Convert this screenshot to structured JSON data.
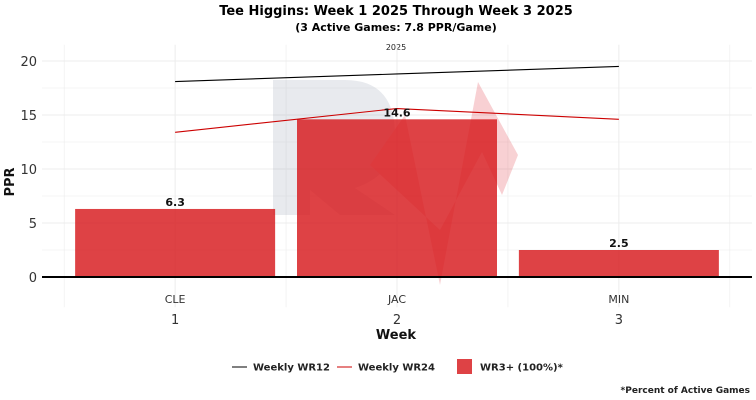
{
  "colors": {
    "bar": "#d7191c",
    "wr12_line": "#000000",
    "wr24_line": "#cc0000",
    "grid": "#ececec",
    "baseline": "#000000"
  },
  "chart_data": {
    "type": "bar",
    "title": "Tee Higgins: Week 1 2025 Through Week 3 2025",
    "subtitle": "(3 Active Games: 7.8 PPR/Game)",
    "facet_label": "2025",
    "xlabel": "Week",
    "ylabel": "PPR",
    "ylim": [
      -2.8,
      21.5
    ],
    "yticks": [
      "0",
      "5",
      "10",
      "15",
      "20"
    ],
    "grid": true,
    "x": [
      "1",
      "2",
      "3"
    ],
    "categories": [
      "CLE",
      "JAC",
      "MIN"
    ],
    "series": [
      {
        "name": "WR3+ (100%)*",
        "type": "bar",
        "values": [
          6.3,
          14.6,
          2.5
        ],
        "labels": [
          "6.3",
          "14.6",
          "2.5"
        ]
      },
      {
        "name": "Weekly WR12",
        "type": "line",
        "values": [
          18.1,
          18.8,
          19.5
        ]
      },
      {
        "name": "Weekly WR24",
        "type": "line",
        "values": [
          13.4,
          15.6,
          14.6
        ]
      }
    ],
    "legend_position": "bottom",
    "footnote": "*Percent of Active Games"
  }
}
